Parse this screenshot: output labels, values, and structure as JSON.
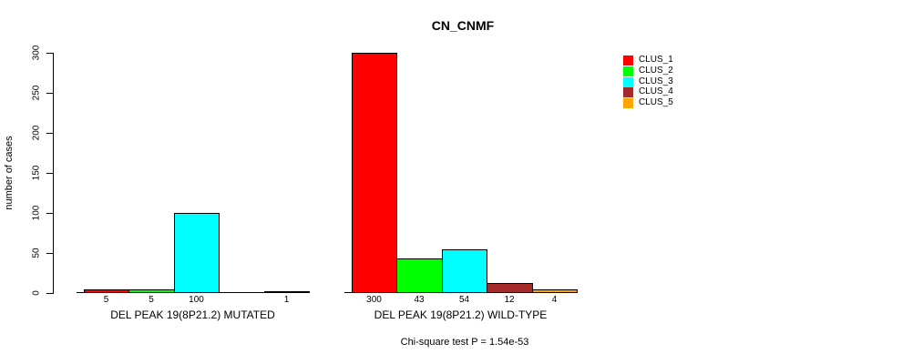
{
  "chart_data": {
    "type": "bar",
    "title": "CN_CNMF",
    "ylabel": "number of cases",
    "ylim": [
      0,
      300
    ],
    "yticks": [
      0,
      50,
      100,
      150,
      200,
      250,
      300
    ],
    "grid": false,
    "legend_position": "right",
    "series": [
      {
        "name": "CLUS_1",
        "color": "#FF0000"
      },
      {
        "name": "CLUS_2",
        "color": "#00FF00"
      },
      {
        "name": "CLUS_3",
        "color": "#00FFFF"
      },
      {
        "name": "CLUS_4",
        "color": "#A52A2A"
      },
      {
        "name": "CLUS_5",
        "color": "#FFA500"
      }
    ],
    "groups": [
      {
        "label": "DEL PEAK 19(8P21.2) MUTATED",
        "values": [
          5,
          5,
          100,
          0,
          1
        ],
        "value_labels": [
          "5",
          "5",
          "100",
          "",
          "1"
        ]
      },
      {
        "label": "DEL PEAK 19(8P21.2) WILD-TYPE",
        "values": [
          300,
          43,
          54,
          12,
          4
        ],
        "value_labels": [
          "300",
          "43",
          "54",
          "12",
          "4"
        ]
      }
    ],
    "annotation": "Chi-square test P = 1.54e-53"
  }
}
